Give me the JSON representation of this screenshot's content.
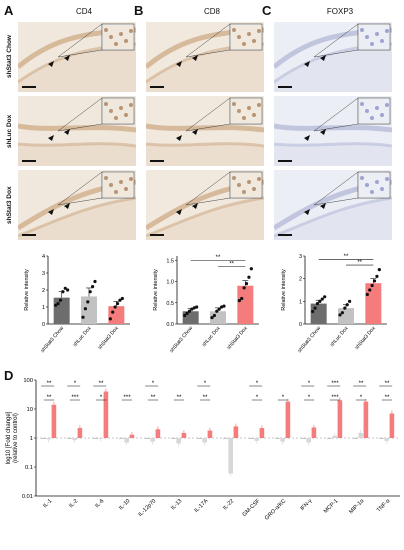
{
  "panels": {
    "A": {
      "letter": "A",
      "stain": "CD4"
    },
    "B": {
      "letter": "B",
      "stain": "CD8"
    },
    "C": {
      "letter": "C",
      "stain": "FOXP3"
    },
    "D": {
      "letter": "D"
    }
  },
  "rows": [
    "shStat3 Chow",
    "shLuc Dox",
    "shStat3 Dox"
  ],
  "colors": {
    "chow": "#6d6d6d",
    "luc": "#c2c2c2",
    "dox": "#f47c7c",
    "chowD": "#b3b3b3",
    "lucD": "#d7d7d7",
    "ihcBrown": "#caa27a",
    "ihcBlue": "#b9c0e0"
  },
  "chart_data": [
    {
      "type": "bar",
      "panel": "A",
      "categories": [
        "shStat3 Chow",
        "shLuc Dox",
        "shStat3 Dox"
      ],
      "values": [
        1.55,
        1.62,
        1.05
      ],
      "errors": [
        0.35,
        0.5,
        0.28
      ],
      "points": [
        [
          1.1,
          1.2,
          1.4,
          1.9,
          2.1,
          2.0
        ],
        [
          0.4,
          0.9,
          1.3,
          1.9,
          2.2,
          2.5
        ],
        [
          0.3,
          0.7,
          1.0,
          1.2,
          1.4,
          1.5
        ]
      ],
      "ylabel": "Relative intensity",
      "ylim": [
        0,
        4
      ],
      "yticks": [
        "0",
        "1",
        "2",
        "3",
        "4"
      ],
      "sig": []
    },
    {
      "type": "bar",
      "panel": "B",
      "categories": [
        "shStat3 Chow",
        "shLuc Dox",
        "shStat3 Dox"
      ],
      "values": [
        0.3,
        0.3,
        0.9
      ],
      "errors": [
        0.06,
        0.08,
        0.12
      ],
      "points": [
        [
          0.2,
          0.25,
          0.3,
          0.35,
          0.38,
          0.4
        ],
        [
          0.15,
          0.2,
          0.3,
          0.35,
          0.4,
          0.42
        ],
        [
          0.55,
          0.6,
          0.85,
          0.95,
          1.1,
          1.3
        ]
      ],
      "ylabel": "Relative intensity",
      "ylim": [
        0,
        1.6
      ],
      "yticks": [
        "0.0",
        "0.5",
        "1.0",
        "1.5"
      ],
      "sig": [
        {
          "from": 0,
          "to": 2,
          "label": "**",
          "level": 1.5
        },
        {
          "from": 1,
          "to": 2,
          "label": "**",
          "level": 1.35
        }
      ]
    },
    {
      "type": "bar",
      "panel": "C",
      "categories": [
        "shStat3 Chow",
        "shLuc Dox",
        "shStat3 Dox"
      ],
      "values": [
        0.9,
        0.7,
        1.8
      ],
      "errors": [
        0.15,
        0.15,
        0.2
      ],
      "points": [
        [
          0.55,
          0.7,
          0.9,
          1.0,
          1.1,
          1.2
        ],
        [
          0.4,
          0.5,
          0.7,
          0.85,
          1.0
        ],
        [
          1.3,
          1.5,
          1.7,
          1.9,
          2.1,
          2.4
        ]
      ],
      "ylabel": "Relative intensity",
      "ylim": [
        0,
        3
      ],
      "yticks": [
        "0",
        "1",
        "2",
        "3"
      ],
      "sig": [
        {
          "from": 0,
          "to": 2,
          "label": "**",
          "level": 2.85
        },
        {
          "from": 1,
          "to": 2,
          "label": "**",
          "level": 2.6
        }
      ]
    },
    {
      "type": "bar",
      "panel": "D",
      "scale": "log",
      "ylabel": "log10 [Fold change]",
      "ylabel2": "(relative to control)",
      "yticks": [
        "0.01",
        "0.1",
        "1",
        "10",
        "100"
      ],
      "ylim": [
        0.01,
        100
      ],
      "categories": [
        "IL-1",
        "IL-2",
        "IL-6",
        "IL-10",
        "IL-12p70",
        "IL-13",
        "IL-17A",
        "IL-22",
        "GM-CSF",
        "GRO-α/KC",
        "IFN-γ",
        "MCP-1",
        "MIP-1α",
        "TNF-α"
      ],
      "series": [
        {
          "values": [
            1,
            1,
            1,
            1,
            1,
            1,
            1,
            1,
            1,
            1,
            1,
            1,
            1,
            1
          ]
        },
        {
          "values": [
            0.9,
            0.85,
            0.95,
            0.7,
            0.75,
            0.65,
            0.7,
            0.06,
            0.8,
            0.75,
            0.7,
            1.2,
            1.5,
            0.8
          ]
        },
        {
          "values": [
            14,
            2.2,
            40,
            1.3,
            2.0,
            1.5,
            1.8,
            2.5,
            2.2,
            18,
            2.3,
            20,
            18,
            7
          ]
        }
      ],
      "sig": [
        {
          "cat": 0,
          "top": "**",
          "bot": "**"
        },
        {
          "cat": 1,
          "top": "*",
          "bot": "***"
        },
        {
          "cat": 2,
          "top": "**",
          "bot": "*"
        },
        {
          "cat": 3,
          "top": "",
          "bot": "***"
        },
        {
          "cat": 4,
          "top": "*",
          "bot": "**"
        },
        {
          "cat": 5,
          "top": "",
          "bot": "**"
        },
        {
          "cat": 6,
          "top": "*",
          "bot": "**"
        },
        {
          "cat": 8,
          "top": "*",
          "bot": "*"
        },
        {
          "cat": 9,
          "top": "",
          "bot": "*"
        },
        {
          "cat": 10,
          "top": "*",
          "bot": "*"
        },
        {
          "cat": 11,
          "top": "***",
          "bot": "***"
        },
        {
          "cat": 12,
          "top": "**",
          "bot": "*"
        },
        {
          "cat": 13,
          "top": "**",
          "bot": "**"
        }
      ]
    }
  ]
}
